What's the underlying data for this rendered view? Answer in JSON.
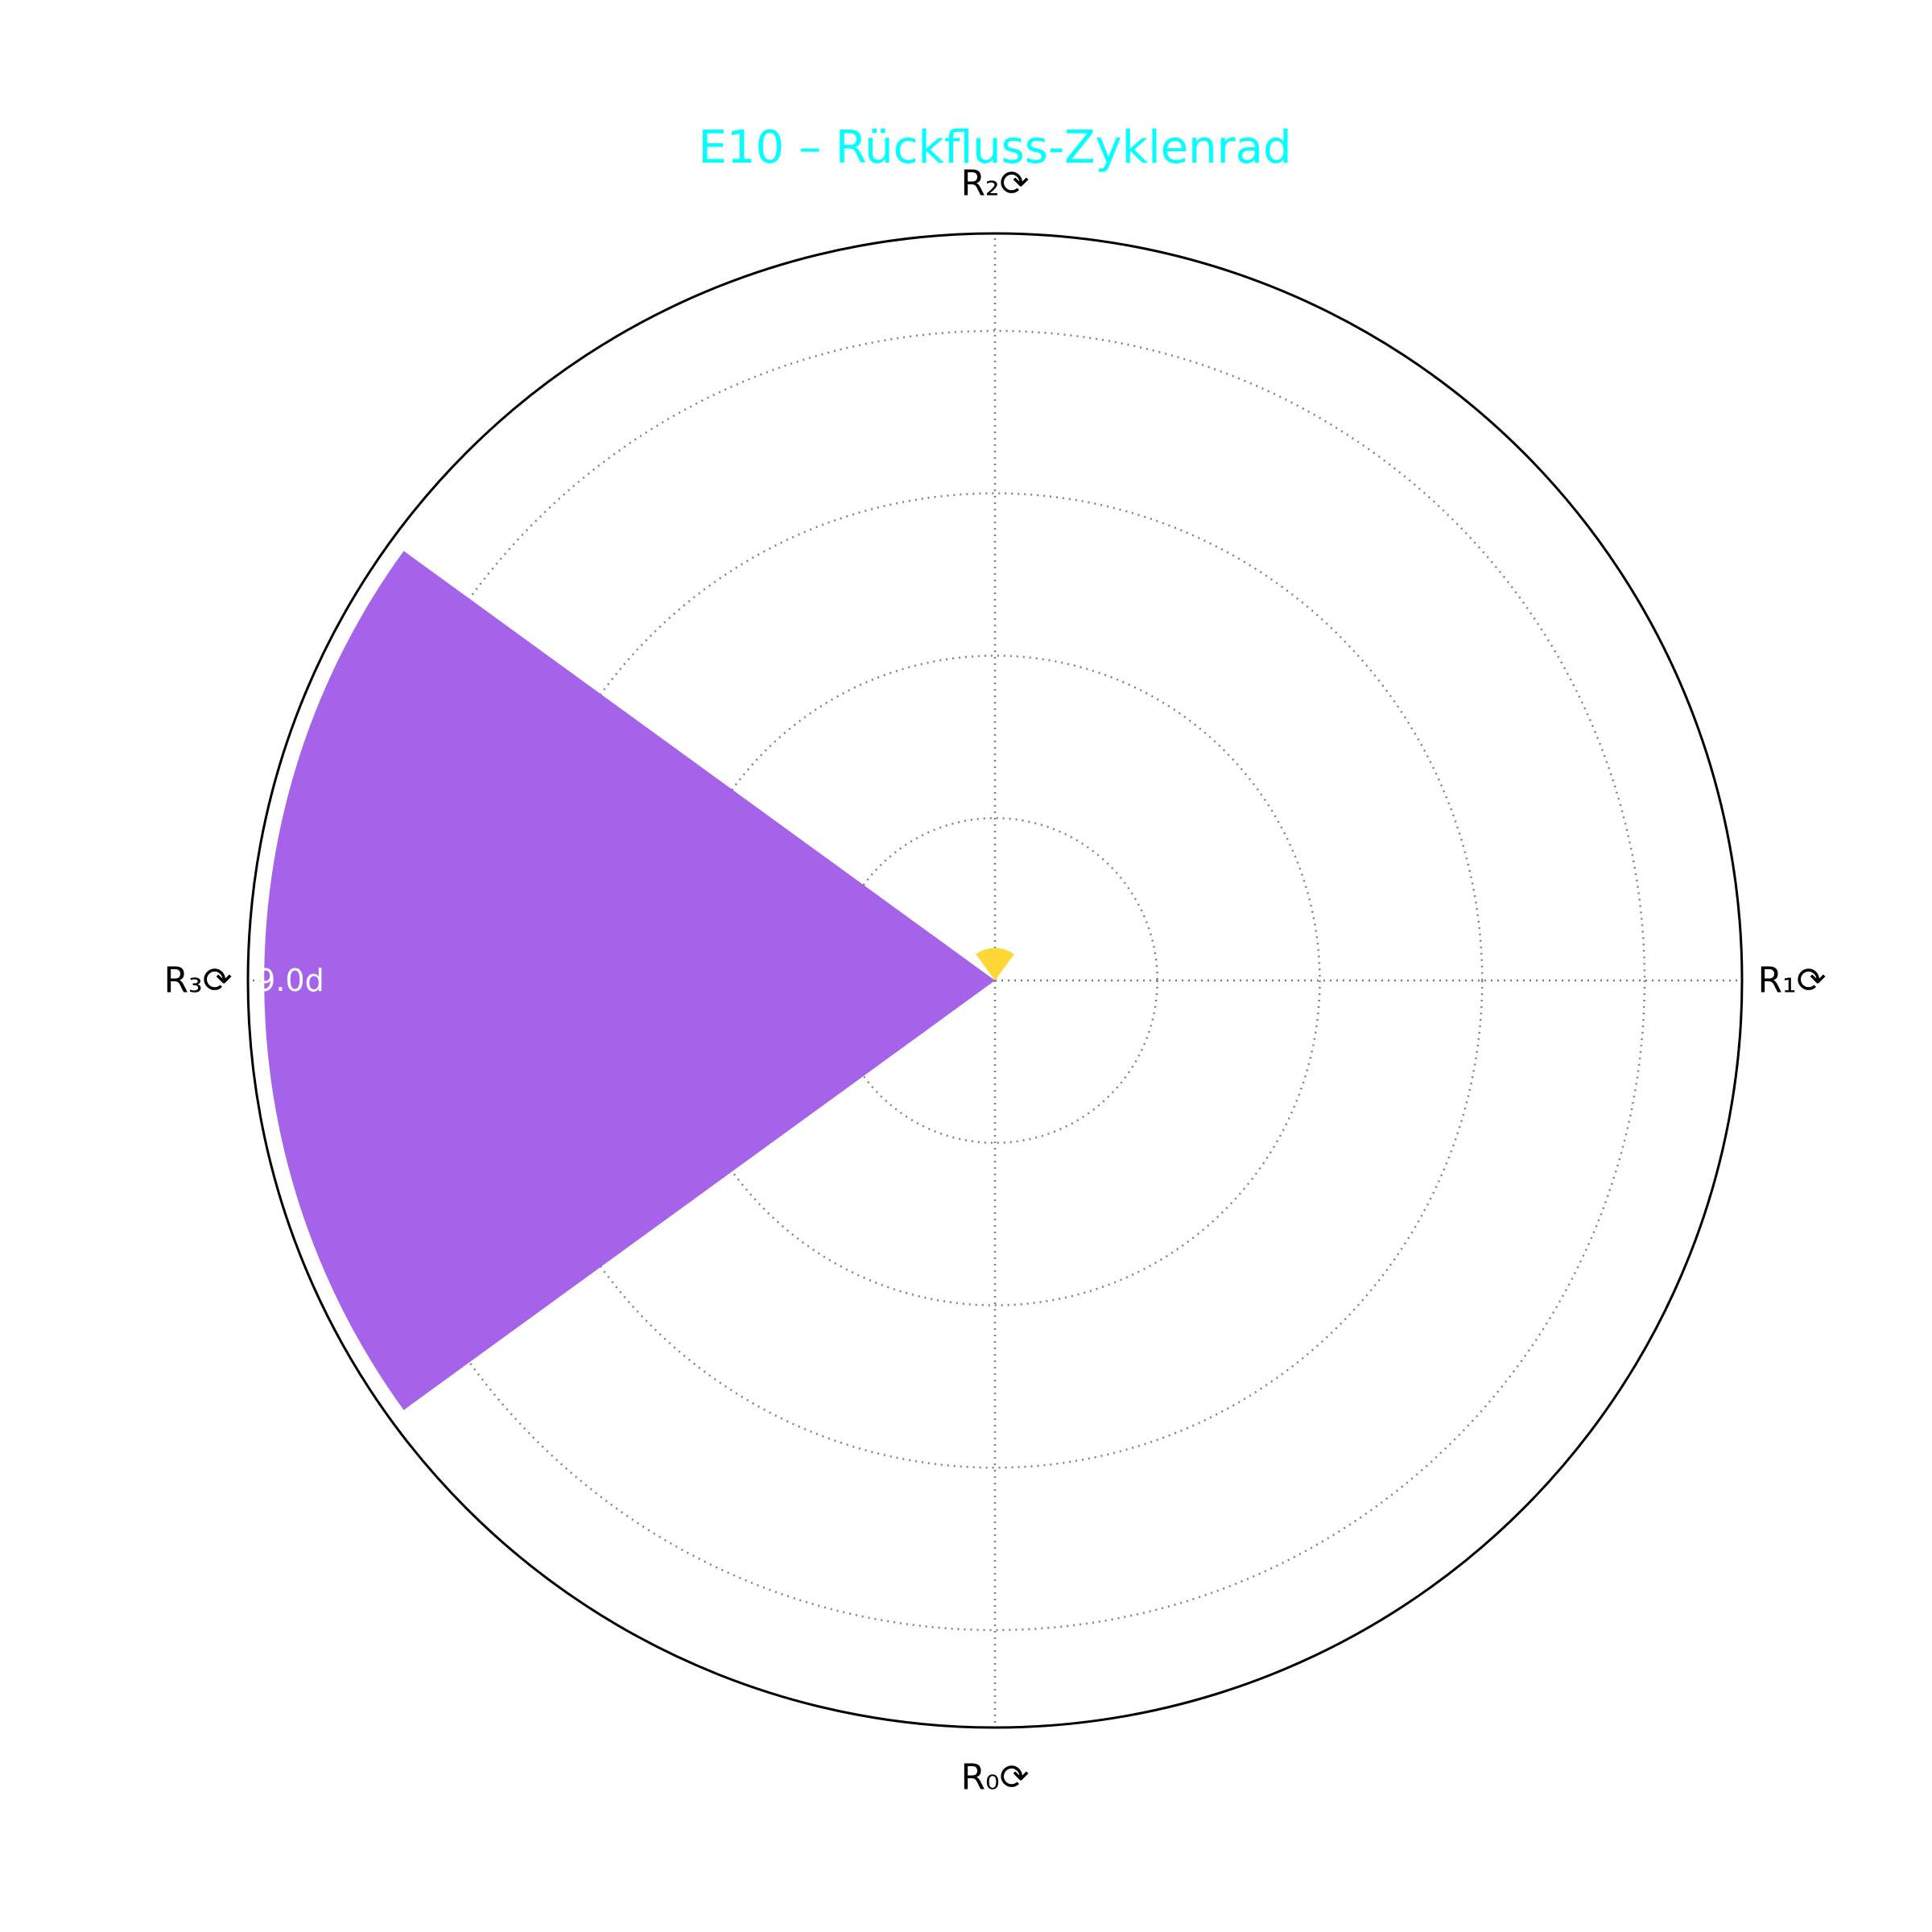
{
  "chart_data": {
    "type": "polar-bar",
    "title": "E10 – Rückfluss-Zyklenrad",
    "title_color": "#00FFFF",
    "theta_labels": [
      "R₀⟳",
      "R₁⟳",
      "R₂⟳",
      "R₃⟳"
    ],
    "categories": [
      "R₀⟳",
      "R₁⟳",
      "R₂⟳",
      "R₃⟳"
    ],
    "values": [
      0,
      0,
      0.4,
      9.0
    ],
    "bar_colors": [
      "#9B59B6",
      "#9B59B6",
      "#FDD835",
      "#A463E8"
    ],
    "data_labels": [
      "",
      "",
      "",
      "9.0d"
    ],
    "rlim": [
      0,
      9.2
    ],
    "r_gridlines": [
      2,
      4,
      6,
      8
    ],
    "grid": true,
    "grid_style": "dotted",
    "theta_direction": "counterclockwise from bottom"
  }
}
